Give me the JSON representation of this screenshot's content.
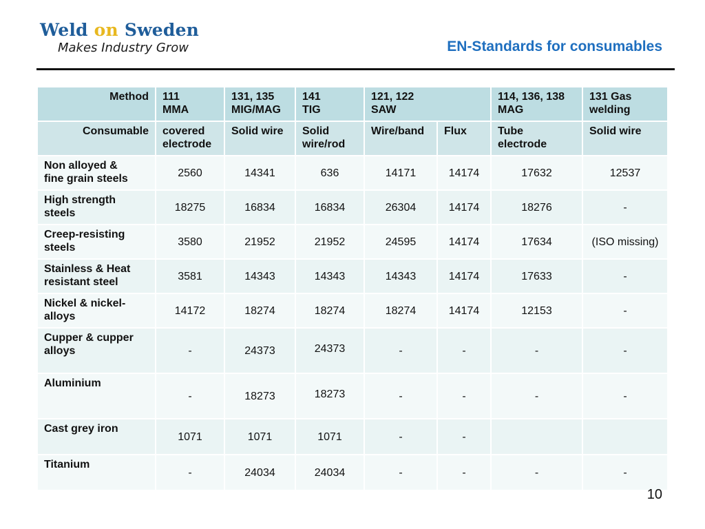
{
  "logo": {
    "part1": "Weld",
    "part2": "on",
    "part3": "Sweden"
  },
  "tagline": "Makes Industry Grow",
  "title": "EN-Standards for consumables",
  "table": {
    "method_row": {
      "label": "Method",
      "cells": [
        [
          "111",
          "MMA"
        ],
        [
          "131, 135",
          "MIG/MAG"
        ],
        [
          "141",
          "TIG"
        ],
        [
          "121, 122",
          "SAW"
        ],
        [
          "114, 136, 138",
          "MAG"
        ],
        [
          "131 Gas",
          "welding"
        ]
      ]
    },
    "consumable_row": {
      "label": "Consumable",
      "cells": [
        [
          "covered",
          "electrode"
        ],
        [
          "Solid wire"
        ],
        [
          "Solid",
          "wire/rod"
        ],
        [
          "Wire/band"
        ],
        [
          "Flux"
        ],
        [
          "Tube",
          "electrode"
        ],
        [
          "Solid wire"
        ]
      ]
    },
    "rows": [
      {
        "material": [
          "Non alloyed &",
          "fine grain steels"
        ],
        "values": [
          "2560",
          "14341",
          "636",
          "14171",
          "14174",
          "17632",
          "12537"
        ]
      },
      {
        "material": [
          "High strength",
          "steels"
        ],
        "values": [
          "18275",
          "16834",
          "16834",
          "26304",
          "14174",
          "18276",
          "-"
        ]
      },
      {
        "material": [
          "Creep-resisting",
          "steels"
        ],
        "values": [
          "3580",
          "21952",
          "21952",
          "24595",
          "14174",
          "17634",
          "(ISO missing)"
        ]
      },
      {
        "material": [
          "Stainless & Heat",
          "resistant steel"
        ],
        "values": [
          "3581",
          "14343",
          "14343",
          "14343",
          "14174",
          "17633",
          "-"
        ]
      },
      {
        "material": [
          "Nickel & nickel-",
          "alloys"
        ],
        "values": [
          "14172",
          "18274",
          "18274",
          "18274",
          "14174",
          "12153",
          "-"
        ]
      },
      {
        "material": [
          "Cupper & cupper",
          "alloys"
        ],
        "values": [
          "-",
          "24373",
          "24373",
          "-",
          "-",
          "-",
          "-"
        ]
      },
      {
        "material": [
          "Aluminium"
        ],
        "values": [
          "-",
          "18273",
          "18273",
          "-",
          "-",
          "-",
          "-"
        ]
      },
      {
        "material": [
          "Cast grey iron"
        ],
        "values": [
          "1071",
          "1071",
          "1071",
          "-",
          "-",
          "",
          ""
        ]
      },
      {
        "material": [
          "Titanium"
        ],
        "values": [
          "-",
          "24034",
          "24034",
          "-",
          "-",
          "-",
          "-"
        ]
      }
    ]
  },
  "page_number": "10",
  "colors": {
    "brand_blue": "#1f5d9a",
    "brand_yellow": "#e8b820",
    "title_blue": "#1f6fbf",
    "header_fill": "#bddde2",
    "row_fill_light": "#f3f9f9",
    "row_fill_dark": "#eaf4f4"
  }
}
